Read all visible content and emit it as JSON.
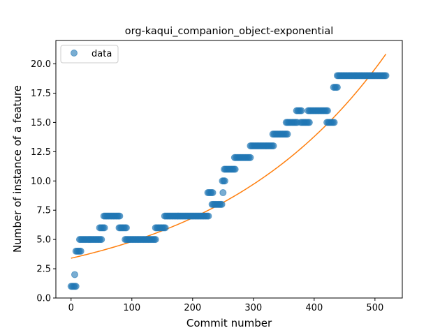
{
  "chart_data": {
    "type": "scatter",
    "title": "org-kaqui_companion_object-exponential",
    "xlabel": "Commit number",
    "ylabel": "Number of instance of a feature",
    "xlim": [
      -25,
      545
    ],
    "ylim": [
      0,
      22
    ],
    "x_ticks": [
      0,
      100,
      200,
      300,
      400,
      500
    ],
    "y_ticks": [
      0.0,
      2.5,
      5.0,
      7.5,
      10.0,
      12.5,
      15.0,
      17.5,
      20.0
    ],
    "x_tick_labels": [
      "0",
      "100",
      "200",
      "300",
      "400",
      "500"
    ],
    "y_tick_labels": [
      "0.0",
      "2.5",
      "5.0",
      "7.5",
      "10.0",
      "12.5",
      "15.0",
      "17.5",
      "20.0"
    ],
    "grid": false,
    "legend": {
      "position": "top-left",
      "entries": [
        "data"
      ]
    },
    "colors": {
      "data": "#1f77b4",
      "fit": "#ff7f0e"
    },
    "series": [
      {
        "name": "data",
        "kind": "scatter",
        "segments": [
          {
            "x_start": 0,
            "x_end": 8,
            "y": 1
          },
          {
            "x_start": 6,
            "x_end": 7,
            "y": 2
          },
          {
            "x_start": 8,
            "x_end": 16,
            "y": 4
          },
          {
            "x_start": 14,
            "x_end": 50,
            "y": 5
          },
          {
            "x_start": 47,
            "x_end": 56,
            "y": 6
          },
          {
            "x_start": 54,
            "x_end": 80,
            "y": 7
          },
          {
            "x_start": 79,
            "x_end": 92,
            "y": 6
          },
          {
            "x_start": 89,
            "x_end": 140,
            "y": 5
          },
          {
            "x_start": 139,
            "x_end": 156,
            "y": 6
          },
          {
            "x_start": 154,
            "x_end": 226,
            "y": 7
          },
          {
            "x_start": 225,
            "x_end": 233,
            "y": 9
          },
          {
            "x_start": 232,
            "x_end": 249,
            "y": 8
          },
          {
            "x_start": 250,
            "x_end": 250,
            "y": 9
          },
          {
            "x_start": 249,
            "x_end": 253,
            "y": 10
          },
          {
            "x_start": 252,
            "x_end": 270,
            "y": 11
          },
          {
            "x_start": 269,
            "x_end": 296,
            "y": 12
          },
          {
            "x_start": 295,
            "x_end": 333,
            "y": 13
          },
          {
            "x_start": 332,
            "x_end": 357,
            "y": 14
          },
          {
            "x_start": 354,
            "x_end": 372,
            "y": 15
          },
          {
            "x_start": 371,
            "x_end": 380,
            "y": 16
          },
          {
            "x_start": 378,
            "x_end": 392,
            "y": 15
          },
          {
            "x_start": 390,
            "x_end": 422,
            "y": 16
          },
          {
            "x_start": 421,
            "x_end": 434,
            "y": 15
          },
          {
            "x_start": 432,
            "x_end": 439,
            "y": 18
          },
          {
            "x_start": 438,
            "x_end": 518,
            "y": 19
          }
        ],
        "step": 2
      },
      {
        "kind": "line",
        "model": "exponential",
        "params": {
          "a": 3.4,
          "b": 0.0035
        },
        "x_range": [
          0,
          518
        ]
      }
    ]
  }
}
